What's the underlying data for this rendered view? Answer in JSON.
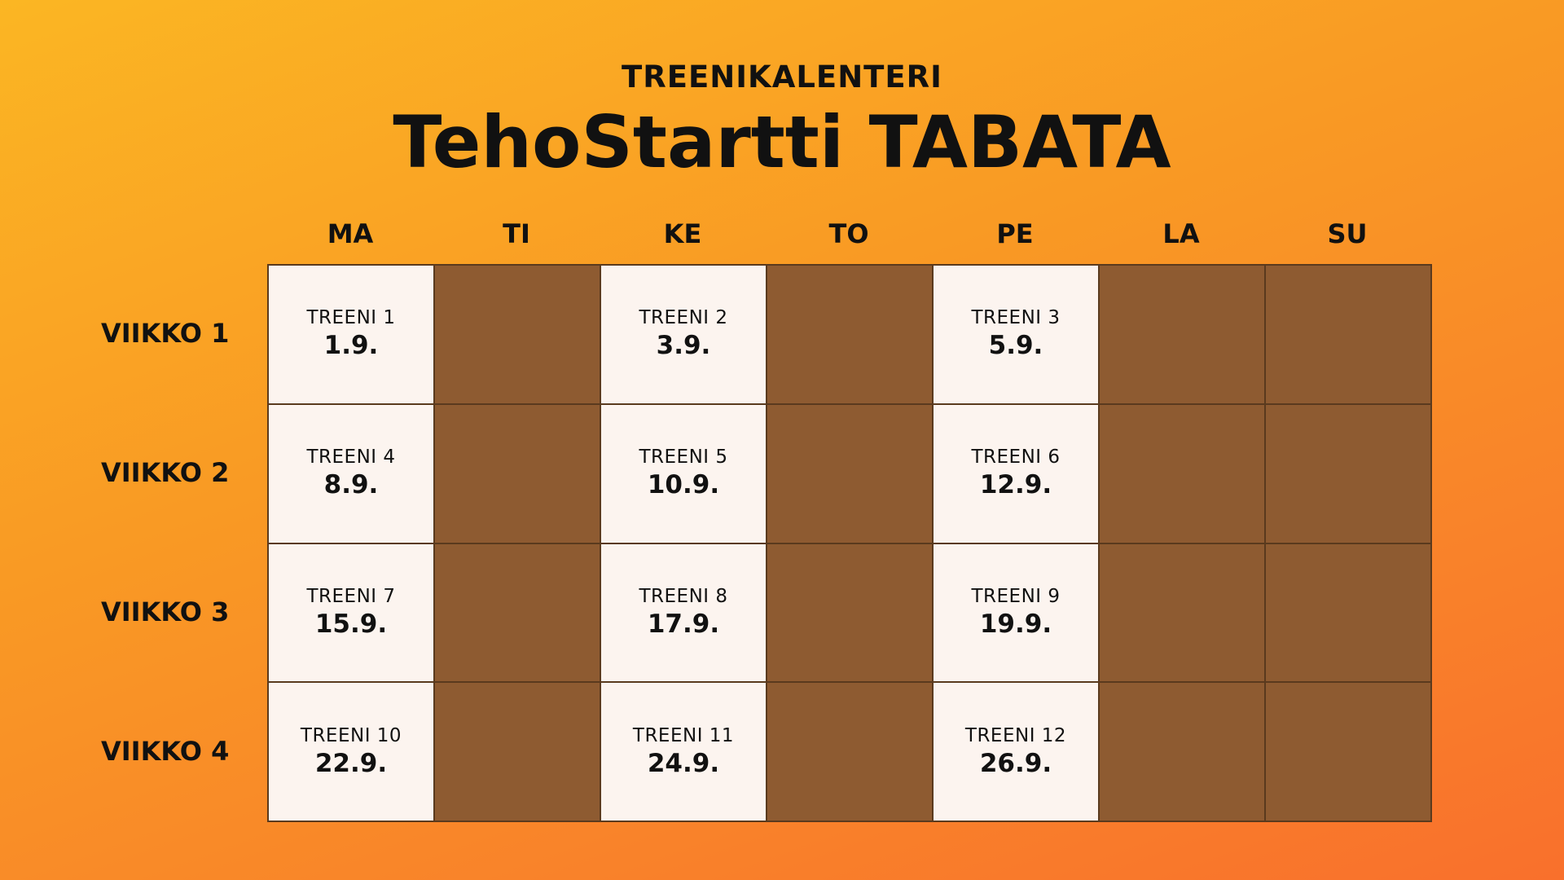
{
  "header": {
    "subtitle": "TREENIKALENTERI",
    "title": "TehoStartti TABATA"
  },
  "days": [
    "MA",
    "TI",
    "KE",
    "TO",
    "PE",
    "LA",
    "SU"
  ],
  "weeks": [
    {
      "label": "VIIKKO 1",
      "cells": [
        {
          "type": "workout",
          "name": "TREENI 1",
          "date": "1.9."
        },
        {
          "type": "rest"
        },
        {
          "type": "workout",
          "name": "TREENI 2",
          "date": "3.9."
        },
        {
          "type": "rest"
        },
        {
          "type": "workout",
          "name": "TREENI 3",
          "date": "5.9."
        },
        {
          "type": "rest"
        },
        {
          "type": "rest"
        }
      ]
    },
    {
      "label": "VIIKKO 2",
      "cells": [
        {
          "type": "workout",
          "name": "TREENI 4",
          "date": "8.9."
        },
        {
          "type": "rest"
        },
        {
          "type": "workout",
          "name": "TREENI 5",
          "date": "10.9."
        },
        {
          "type": "rest"
        },
        {
          "type": "workout",
          "name": "TREENI 6",
          "date": "12.9."
        },
        {
          "type": "rest"
        },
        {
          "type": "rest"
        }
      ]
    },
    {
      "label": "VIIKKO 3",
      "cells": [
        {
          "type": "workout",
          "name": "TREENI 7",
          "date": "15.9."
        },
        {
          "type": "rest"
        },
        {
          "type": "workout",
          "name": "TREENI 8",
          "date": "17.9."
        },
        {
          "type": "rest"
        },
        {
          "type": "workout",
          "name": "TREENI 9",
          "date": "19.9."
        },
        {
          "type": "rest"
        },
        {
          "type": "rest"
        }
      ]
    },
    {
      "label": "VIIKKO 4",
      "cells": [
        {
          "type": "workout",
          "name": "TREENI 10",
          "date": "22.9."
        },
        {
          "type": "rest"
        },
        {
          "type": "workout",
          "name": "TREENI 11",
          "date": "24.9."
        },
        {
          "type": "rest"
        },
        {
          "type": "workout",
          "name": "TREENI 12",
          "date": "26.9."
        },
        {
          "type": "rest"
        },
        {
          "type": "rest"
        }
      ]
    }
  ],
  "colors": {
    "workout_cell": "#fcf4ef",
    "rest_cell": "#8e5b31",
    "background_top": "#fbb623",
    "background_bottom": "#f9702c"
  }
}
